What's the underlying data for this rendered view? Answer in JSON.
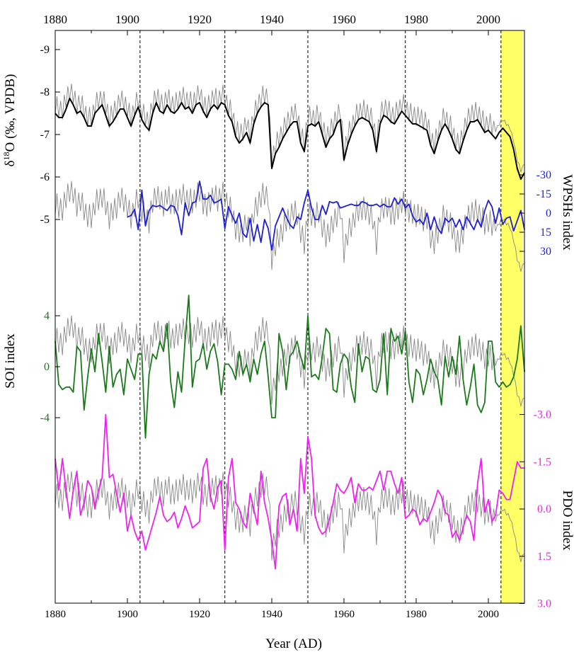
{
  "chart_data": {
    "type": "line",
    "xlabel": "Year (AD)",
    "xlim": [
      1880,
      2010
    ],
    "x_ticks": [
      1880,
      1900,
      1920,
      1940,
      1960,
      1980,
      2000
    ],
    "grid": false,
    "colors": {
      "d18o_annual": "#888888",
      "d18o_smooth": "#000000",
      "wpsh": "#1f1fd6",
      "soi": "#1a7a1a",
      "pdo": "#ee22ee",
      "highlight": "#ffff66"
    },
    "vertical_lines": [
      1903.5,
      1927,
      1950,
      1977
    ],
    "highlight_span": [
      2003.5,
      2009.5
    ],
    "axes": {
      "d18o": {
        "label": "δ18O (‰, VPDB)",
        "label_main": "δ",
        "label_sup": "18",
        "label_rest": "O (‰, VPDB)",
        "ticks": [
          "-9",
          "-8",
          "-7",
          "-6",
          "-5"
        ],
        "range": [
          -9,
          -4.55
        ],
        "inverted": true,
        "side": "left",
        "color": "#000000"
      },
      "wpsh": {
        "label": "WPSHs index",
        "ticks": [
          "-30",
          "-15",
          "0",
          "15",
          "30"
        ],
        "range": [
          -30,
          30
        ],
        "inverted": true,
        "side": "right",
        "color": "#1f1fd6"
      },
      "soi": {
        "label": "SOI index",
        "ticks": [
          "4",
          "0",
          "-4"
        ],
        "range": [
          -4,
          4
        ],
        "inverted": false,
        "side": "left",
        "color": "#1a7a1a"
      },
      "pdo": {
        "label": "PDO index",
        "ticks": [
          "-3.0",
          "-1.5",
          "0.0",
          "1.5",
          "3.0"
        ],
        "range": [
          -3,
          3
        ],
        "inverted": true,
        "side": "right",
        "color": "#ee22ee"
      }
    },
    "series": [
      {
        "name": "PDO index",
        "axis": "pdo",
        "x": [
          1880,
          1881,
          1882,
          1883,
          1884,
          1885,
          1886,
          1887,
          1888,
          1889,
          1890,
          1891,
          1892,
          1893,
          1894,
          1895,
          1896,
          1897,
          1898,
          1899,
          1900,
          1901,
          1902,
          1903,
          1904,
          1905,
          1906,
          1907,
          1908,
          1909,
          1910,
          1911,
          1912,
          1913,
          1914,
          1915,
          1916,
          1917,
          1918,
          1919,
          1920,
          1921,
          1922,
          1923,
          1924,
          1925,
          1926,
          1927,
          1928,
          1929,
          1930,
          1931,
          1932,
          1933,
          1934,
          1935,
          1936,
          1937,
          1938,
          1939,
          1940,
          1941,
          1942,
          1943,
          1944,
          1945,
          1946,
          1947,
          1948,
          1949,
          1950,
          1951,
          1952,
          1953,
          1954,
          1955,
          1956,
          1957,
          1958,
          1959,
          1960,
          1961,
          1962,
          1963,
          1964,
          1965,
          1966,
          1967,
          1968,
          1969,
          1970,
          1971,
          1972,
          1973,
          1974,
          1975,
          1976,
          1977,
          1978,
          1979,
          1980,
          1981,
          1982,
          1983,
          1984,
          1985,
          1986,
          1987,
          1988,
          1989,
          1990,
          1991,
          1992,
          1993,
          1994,
          1995,
          1996,
          1997,
          1998,
          1999,
          2000,
          2001,
          2002,
          2003,
          2004,
          2005,
          2006,
          2007,
          2008,
          2009,
          2010
        ],
        "values": [
          -1.6,
          -0.6,
          -1.6,
          -0.6,
          0.3,
          -0.6,
          -1.2,
          0.2,
          -0.2,
          -0.9,
          -0.7,
          0.0,
          -0.6,
          -1.0,
          -3.0,
          -1.0,
          -1.1,
          -0.5,
          0.1,
          -0.5,
          0.7,
          0.2,
          0.7,
          1.0,
          0.7,
          1.3,
          0.9,
          0.5,
          0.1,
          -0.4,
          0.2,
          0.4,
          0.3,
          0.1,
          0.6,
          0.3,
          -0.1,
          0.2,
          0.6,
          0.5,
          0.4,
          -1.3,
          -1.6,
          -0.4,
          0.0,
          -0.7,
          -0.9,
          1.3,
          -1.0,
          -1.6,
          -0.2,
          0.0,
          0.4,
          0.6,
          -0.5,
          0.0,
          0.5,
          -1.2,
          -0.2,
          0.3,
          1.0,
          1.9,
          -0.1,
          -0.4,
          -0.5,
          0.5,
          0.0,
          0.7,
          -1.6,
          -0.5,
          -2.3,
          -1.6,
          0.2,
          0.6,
          0.8,
          0.7,
          0.3,
          -0.2,
          -0.8,
          -0.6,
          -0.5,
          -0.7,
          -1.0,
          -0.2,
          -0.8,
          -0.6,
          -0.6,
          -0.7,
          -0.6,
          -0.9,
          -1.2,
          -0.6,
          -1.2,
          -1.2,
          -0.8,
          -0.5,
          -1.0,
          0.3,
          0.2,
          0.0,
          0.1,
          0.5,
          0.3,
          0.4,
          0.1,
          -0.2,
          -0.6,
          -0.4,
          0.1,
          0.2,
          0.9,
          0.7,
          1.0,
          0.6,
          0.2,
          0.4,
          1.0,
          -0.8,
          -1.6,
          0.1,
          -0.3,
          0.4,
          0.2,
          -0.6,
          -0.5,
          -0.3,
          -0.3,
          -0.9,
          -1.5,
          -1.3,
          -1.3
        ]
      },
      {
        "name": "SOI index",
        "axis": "soi",
        "x": [
          1880,
          1881,
          1882,
          1883,
          1884,
          1885,
          1886,
          1887,
          1888,
          1889,
          1890,
          1891,
          1892,
          1893,
          1894,
          1895,
          1896,
          1897,
          1898,
          1899,
          1900,
          1901,
          1902,
          1903,
          1904,
          1905,
          1906,
          1907,
          1908,
          1909,
          1910,
          1911,
          1912,
          1913,
          1914,
          1915,
          1916,
          1917,
          1918,
          1919,
          1920,
          1921,
          1922,
          1923,
          1924,
          1925,
          1926,
          1927,
          1928,
          1929,
          1930,
          1931,
          1932,
          1933,
          1934,
          1935,
          1936,
          1937,
          1938,
          1939,
          1940,
          1941,
          1942,
          1943,
          1944,
          1945,
          1946,
          1947,
          1948,
          1949,
          1950,
          1951,
          1952,
          1953,
          1954,
          1955,
          1956,
          1957,
          1958,
          1959,
          1960,
          1961,
          1962,
          1963,
          1964,
          1965,
          1966,
          1967,
          1968,
          1969,
          1970,
          1971,
          1972,
          1973,
          1974,
          1975,
          1976,
          1977,
          1978,
          1979,
          1980,
          1981,
          1982,
          1983,
          1984,
          1985,
          1986,
          1987,
          1988,
          1989,
          1990,
          1991,
          1992,
          1993,
          1994,
          1995,
          1996,
          1997,
          1998,
          1999,
          2000,
          2001,
          2002,
          2003,
          2004,
          2005,
          2006,
          2007,
          2008,
          2009,
          2010
        ],
        "values": [
          2.0,
          -1.4,
          -1.8,
          -1.6,
          -1.6,
          -2.0,
          1.6,
          1.2,
          -3.4,
          -0.8,
          1.4,
          -0.4,
          2.6,
          0.4,
          -2.0,
          1.6,
          -1.6,
          -0.6,
          -0.2,
          -2.2,
          0.6,
          -0.2,
          -1.0,
          1.0,
          1.0,
          -5.6,
          -0.6,
          1.0,
          0.6,
          2.0,
          1.2,
          3.4,
          -1.2,
          -3.2,
          -0.4,
          -2.0,
          2.2,
          5.6,
          -1.6,
          0.4,
          0.6,
          1.8,
          -0.2,
          1.2,
          1.8,
          0.4,
          -2.2,
          0.2,
          0.2,
          -0.2,
          -1.0,
          1.2,
          -0.6,
          0.2,
          -1.2,
          0.6,
          -0.6,
          1.0,
          2.0,
          -0.8,
          -4.0,
          -4.0,
          2.6,
          1.2,
          -1.8,
          0.8,
          1.2,
          2.0,
          0.8,
          -0.2,
          4.0,
          -0.8,
          -0.6,
          -1.0,
          0.8,
          3.0,
          2.6,
          -1.8,
          -2.0,
          0.2,
          1.0,
          0.6,
          -1.6,
          -2.8,
          1.8,
          -0.4,
          0.8,
          0.6,
          -1.8,
          -2.0,
          -1.0,
          2.6,
          -2.2,
          3.0,
          2.0,
          2.4,
          1.0,
          2.8,
          -1.2,
          -2.8,
          -0.2,
          -0.6,
          -2.2,
          -1.0,
          0.6,
          -0.4,
          -1.0,
          -3.0,
          0.8,
          -0.8,
          0.8,
          -0.6,
          2.4,
          -1.0,
          -3.0,
          -1.6,
          0.2,
          -3.0,
          -3.6,
          -2.8,
          2.0,
          2.0,
          -1.2,
          -1.6,
          -1.2,
          -1.6,
          -1.4,
          -0.8,
          0.6,
          3.2,
          -0.4
        ]
      },
      {
        "name": "WPSHs index",
        "axis": "wpsh",
        "x": [
          1900,
          1901,
          1902,
          1903,
          1904,
          1905,
          1906,
          1907,
          1908,
          1909,
          1910,
          1911,
          1912,
          1913,
          1914,
          1915,
          1916,
          1917,
          1918,
          1919,
          1920,
          1921,
          1922,
          1923,
          1924,
          1925,
          1926,
          1927,
          1928,
          1929,
          1930,
          1931,
          1932,
          1933,
          1934,
          1935,
          1936,
          1937,
          1938,
          1939,
          1940,
          1941,
          1942,
          1943,
          1944,
          1945,
          1946,
          1947,
          1948,
          1949,
          1950,
          1951,
          1952,
          1953,
          1954,
          1955,
          1956,
          1957,
          1958,
          1959,
          1960,
          1961,
          1962,
          1963,
          1964,
          1965,
          1966,
          1967,
          1968,
          1969,
          1970,
          1971,
          1972,
          1973,
          1974,
          1975,
          1976,
          1977,
          1978,
          1979,
          1980,
          1981,
          1982,
          1983,
          1984,
          1985,
          1986,
          1987,
          1988,
          1989,
          1990,
          1991,
          1992,
          1993,
          1994,
          1995,
          1996,
          1997,
          1998,
          1999,
          2000,
          2001,
          2002,
          2003,
          2004,
          2005,
          2006,
          2007,
          2008,
          2009,
          2010
        ],
        "values": [
          3,
          2,
          -3,
          13,
          -18,
          10,
          -2,
          -6,
          -5,
          -6,
          -4,
          -2,
          -6,
          -5,
          2,
          17,
          -8,
          2,
          -8,
          -9,
          -25,
          -11,
          -11,
          -14,
          -8,
          -9,
          -11,
          12,
          -5,
          2,
          8,
          0,
          16,
          19,
          4,
          22,
          9,
          23,
          5,
          12,
          29,
          10,
          3,
          -4,
          3,
          9,
          12,
          3,
          5,
          -8,
          -18,
          -4,
          5,
          5,
          -6,
          1,
          -9,
          -8,
          -9,
          -4,
          -5,
          -6,
          -7,
          -6,
          -6,
          -9,
          -8,
          -6,
          -6,
          -7,
          -5,
          -7,
          -5,
          -5,
          -12,
          -7,
          -11,
          -4,
          -7,
          2,
          7,
          5,
          9,
          0,
          13,
          3,
          12,
          16,
          4,
          7,
          4,
          11,
          5,
          13,
          3,
          8,
          13,
          5,
          11,
          -2,
          -10,
          -5,
          8,
          -4,
          9,
          4,
          3,
          14,
          6,
          -2,
          13
        ]
      },
      {
        "name": "δ18O (‰, VPDB)",
        "axis": "d18o",
        "x": [
          1880,
          1881,
          1882,
          1883,
          1884,
          1885,
          1886,
          1887,
          1888,
          1889,
          1890,
          1891,
          1892,
          1893,
          1894,
          1895,
          1896,
          1897,
          1898,
          1899,
          1900,
          1901,
          1902,
          1903,
          1904,
          1905,
          1906,
          1907,
          1908,
          1909,
          1910,
          1911,
          1912,
          1913,
          1914,
          1915,
          1916,
          1917,
          1918,
          1919,
          1920,
          1921,
          1922,
          1923,
          1924,
          1925,
          1926,
          1927,
          1928,
          1929,
          1930,
          1931,
          1932,
          1933,
          1934,
          1935,
          1936,
          1937,
          1938,
          1939,
          1940,
          1941,
          1942,
          1943,
          1944,
          1945,
          1946,
          1947,
          1948,
          1949,
          1950,
          1951,
          1952,
          1953,
          1954,
          1955,
          1956,
          1957,
          1958,
          1959,
          1960,
          1961,
          1962,
          1963,
          1964,
          1965,
          1966,
          1967,
          1968,
          1969,
          1970,
          1971,
          1972,
          1973,
          1974,
          1975,
          1976,
          1977,
          1978,
          1979,
          1980,
          1981,
          1982,
          1983,
          1984,
          1985,
          1986,
          1987,
          1988,
          1989,
          1990,
          1991,
          1992,
          1993,
          1994,
          1995,
          1996,
          1997,
          1998,
          1999,
          2000,
          2001,
          2002,
          2003,
          2004,
          2005,
          2006,
          2007,
          2008,
          2009,
          2010
        ],
        "values": [
          -7.5,
          -7.4,
          -7.4,
          -7.6,
          -7.85,
          -7.7,
          -7.5,
          -7.55,
          -7.4,
          -7.2,
          -7.2,
          -7.5,
          -7.6,
          -7.7,
          -7.45,
          -7.2,
          -7.3,
          -7.45,
          -7.6,
          -7.6,
          -7.4,
          -7.2,
          -7.45,
          -7.65,
          -7.35,
          -7.2,
          -7.1,
          -7.5,
          -7.75,
          -7.55,
          -7.5,
          -7.7,
          -7.55,
          -7.5,
          -7.6,
          -7.75,
          -7.6,
          -7.65,
          -7.5,
          -7.7,
          -7.75,
          -7.55,
          -7.4,
          -7.6,
          -7.7,
          -7.6,
          -7.75,
          -7.7,
          -7.45,
          -7.3,
          -6.95,
          -6.8,
          -6.9,
          -7.05,
          -6.8,
          -7.25,
          -7.5,
          -7.65,
          -7.75,
          -7.7,
          -6.2,
          -6.55,
          -6.7,
          -6.9,
          -7.05,
          -7.2,
          -7.3,
          -7.3,
          -6.8,
          -6.6,
          -7.2,
          -7.25,
          -7.2,
          -7.3,
          -7.0,
          -6.7,
          -6.9,
          -7.0,
          -7.25,
          -7.35,
          -6.4,
          -6.75,
          -7.0,
          -7.2,
          -7.35,
          -7.4,
          -7.35,
          -7.3,
          -7.1,
          -6.6,
          -7.25,
          -7.45,
          -7.4,
          -7.3,
          -7.25,
          -7.4,
          -7.55,
          -7.45,
          -7.35,
          -7.25,
          -7.25,
          -7.2,
          -7.15,
          -7.1,
          -6.75,
          -6.55,
          -6.85,
          -7.1,
          -7.25,
          -7.1,
          -6.9,
          -6.65,
          -6.55,
          -6.85,
          -7.1,
          -7.3,
          -7.3,
          -7.35,
          -7.2,
          -7.05,
          -7.1,
          -7.0,
          -6.9,
          -7.05,
          -7.15,
          -7.05,
          -6.95,
          -6.65,
          -6.2,
          -5.95,
          -6.1
        ]
      }
    ]
  }
}
